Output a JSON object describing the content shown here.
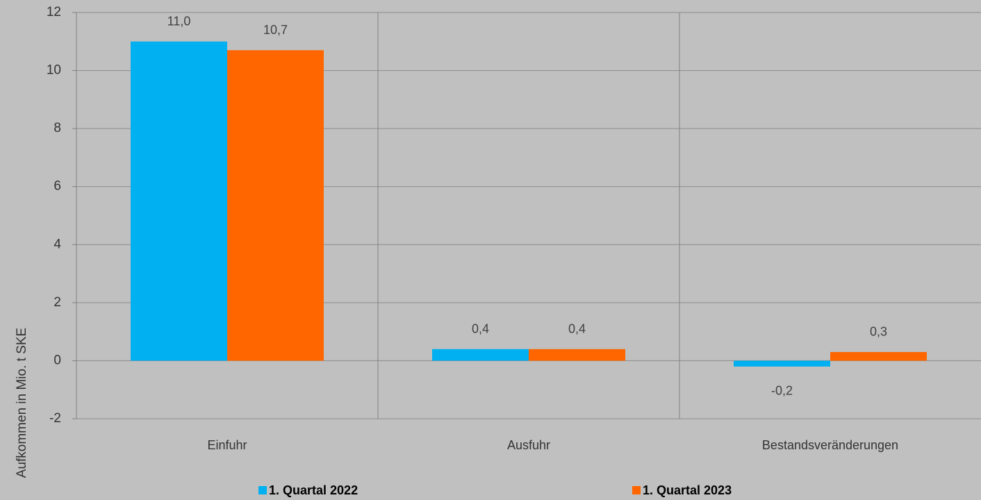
{
  "chart_data": {
    "type": "bar",
    "y_label": "Aufkommen in Mio. t SKE",
    "categories": [
      "Einfuhr",
      "Ausfuhr",
      "Bestandsveränderungen"
    ],
    "series": [
      {
        "name": "1. Quartal 2022",
        "color": "#00b0f0",
        "values": [
          11.0,
          0.4,
          -0.2
        ],
        "value_labels": [
          "11,0",
          "0,4",
          "-0,2"
        ]
      },
      {
        "name": "1. Quartal 2023",
        "color": "#ff6600",
        "values": [
          10.7,
          0.4,
          0.3
        ],
        "value_labels": [
          "10,7",
          "0,4",
          "0,3"
        ]
      }
    ],
    "ylim": [
      -2,
      12
    ],
    "yticks": [
      -2,
      0,
      2,
      4,
      6,
      8,
      10,
      12
    ],
    "grid": true
  }
}
